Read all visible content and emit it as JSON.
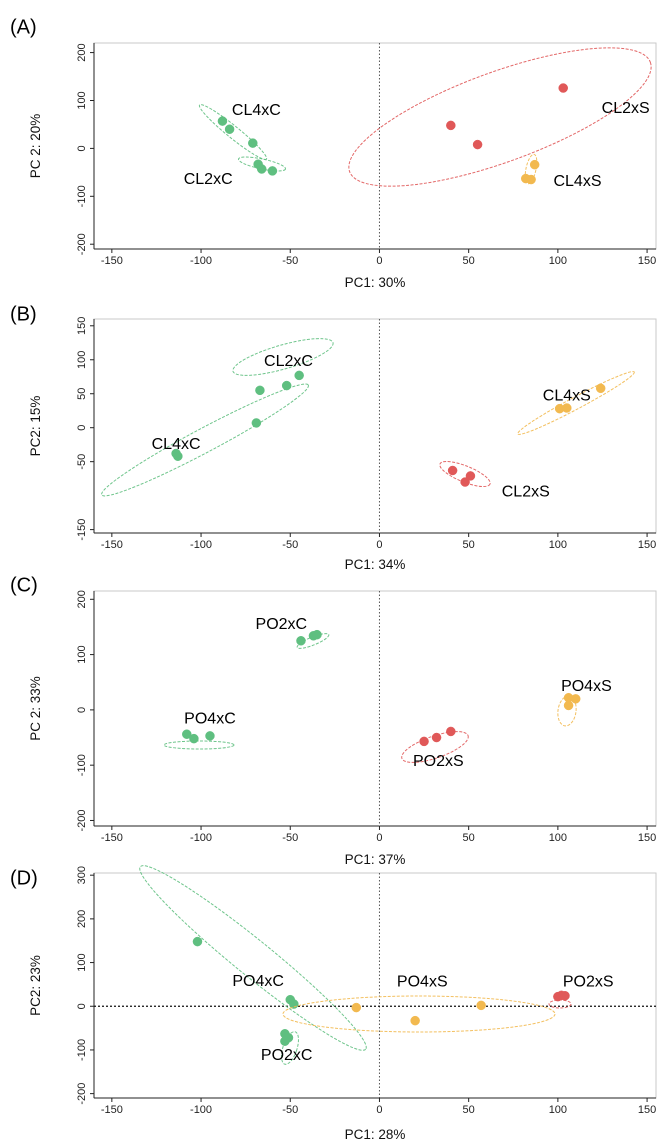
{
  "colors": {
    "control": "#5fbf80",
    "saline_2x": "#e05858",
    "saline_4x": "#f2b94f"
  },
  "chart_data": [
    {
      "type": "scatter",
      "panel_label": "(A)",
      "xlabel": "PC1: 30%",
      "ylabel": "PC 2: 20%",
      "xlim": [
        -160,
        155
      ],
      "ylim": [
        -210,
        220
      ],
      "xticks": [
        -150,
        -100,
        -50,
        0,
        50,
        100,
        150
      ],
      "yticks": [
        -200,
        -100,
        0,
        100,
        200
      ],
      "grid": false,
      "zero_lines": {
        "vertical": true,
        "horizontal": false
      },
      "groups": [
        {
          "label": "CL4xC",
          "color": "#5fbf80",
          "points": [
            [
              -88,
              57
            ],
            [
              -84,
              40
            ],
            [
              -71,
              11
            ]
          ]
        },
        {
          "label": "CL2xC",
          "color": "#5fbf80",
          "points": [
            [
              -68,
              -33
            ],
            [
              -66,
              -43
            ],
            [
              -60,
              -47
            ]
          ]
        },
        {
          "label": "CL2xS",
          "color": "#e05858",
          "points": [
            [
              40,
              48
            ],
            [
              55,
              8
            ],
            [
              103,
              126
            ]
          ]
        },
        {
          "label": "CL4xS",
          "color": "#f2b94f",
          "points": [
            [
              82,
              -63
            ],
            [
              85,
              -65
            ],
            [
              87,
              -34
            ]
          ]
        }
      ]
    },
    {
      "type": "scatter",
      "panel_label": "(B)",
      "xlabel": "PC1: 34%",
      "ylabel": "PC2: 15%",
      "xlim": [
        -160,
        155
      ],
      "ylim": [
        -155,
        160
      ],
      "xticks": [
        -150,
        -100,
        -50,
        0,
        50,
        100,
        150
      ],
      "yticks": [
        -150,
        -50,
        0,
        50,
        100,
        150
      ],
      "grid": false,
      "zero_lines": {
        "vertical": true,
        "horizontal": false
      },
      "groups": [
        {
          "label": "CL2xC",
          "color": "#5fbf80",
          "points": [
            [
              -67,
              55
            ],
            [
              -52,
              62
            ],
            [
              -45,
              77
            ]
          ]
        },
        {
          "label": "CL4xC",
          "color": "#5fbf80",
          "points": [
            [
              -114,
              -38
            ],
            [
              -113,
              -42
            ],
            [
              -69,
              7
            ]
          ]
        },
        {
          "label": "CL4xS",
          "color": "#f2b94f",
          "points": [
            [
              101,
              28
            ],
            [
              105,
              29
            ],
            [
              124,
              58
            ]
          ]
        },
        {
          "label": "CL2xS",
          "color": "#e05858",
          "points": [
            [
              41,
              -63
            ],
            [
              48,
              -80
            ],
            [
              51,
              -71
            ]
          ]
        }
      ]
    },
    {
      "type": "scatter",
      "panel_label": "(C)",
      "xlabel": "PC1: 37%",
      "ylabel": "PC 2: 33%",
      "xlim": [
        -160,
        155
      ],
      "ylim": [
        -210,
        215
      ],
      "xticks": [
        -150,
        -100,
        -50,
        0,
        50,
        100,
        150
      ],
      "yticks": [
        -200,
        -100,
        0,
        100,
        200
      ],
      "grid": false,
      "zero_lines": {
        "vertical": true,
        "horizontal": false
      },
      "groups": [
        {
          "label": "PO2xC",
          "color": "#5fbf80",
          "points": [
            [
              -44,
              125
            ],
            [
              -37,
              134
            ],
            [
              -35,
              136
            ]
          ]
        },
        {
          "label": "PO4xC",
          "color": "#5fbf80",
          "points": [
            [
              -108,
              -44
            ],
            [
              -104,
              -52
            ],
            [
              -95,
              -47
            ]
          ]
        },
        {
          "label": "PO4xS",
          "color": "#f2b94f",
          "points": [
            [
              106,
              22
            ],
            [
              106,
              8
            ],
            [
              110,
              20
            ]
          ]
        },
        {
          "label": "PO2xS",
          "color": "#e05858",
          "points": [
            [
              25,
              -57
            ],
            [
              32,
              -50
            ],
            [
              40,
              -39
            ]
          ]
        }
      ]
    },
    {
      "type": "scatter",
      "panel_label": "(D)",
      "xlabel": "PC1: 28%",
      "ylabel": "PC2: 23%",
      "xlim": [
        -160,
        155
      ],
      "ylim": [
        -210,
        305
      ],
      "xticks": [
        -150,
        -100,
        -50,
        0,
        50,
        100,
        150
      ],
      "yticks": [
        -200,
        -100,
        0,
        100,
        200,
        300
      ],
      "grid": false,
      "zero_lines": {
        "vertical": true,
        "horizontal": true
      },
      "groups": [
        {
          "label": "PO4xC",
          "color": "#5fbf80",
          "points": [
            [
              -102,
              148
            ],
            [
              -50,
              15
            ],
            [
              -48,
              5
            ]
          ]
        },
        {
          "label": "PO2xC",
          "color": "#5fbf80",
          "points": [
            [
              -53,
              -63
            ],
            [
              -51,
              -72
            ],
            [
              -53,
              -80
            ]
          ]
        },
        {
          "label": "PO4xS",
          "color": "#f2b94f",
          "points": [
            [
              -13,
              -3
            ],
            [
              20,
              -33
            ],
            [
              57,
              2
            ]
          ]
        },
        {
          "label": "PO2xS",
          "color": "#e05858",
          "points": [
            [
              100,
              22
            ],
            [
              102,
              25
            ],
            [
              104,
              24
            ]
          ]
        }
      ]
    }
  ]
}
